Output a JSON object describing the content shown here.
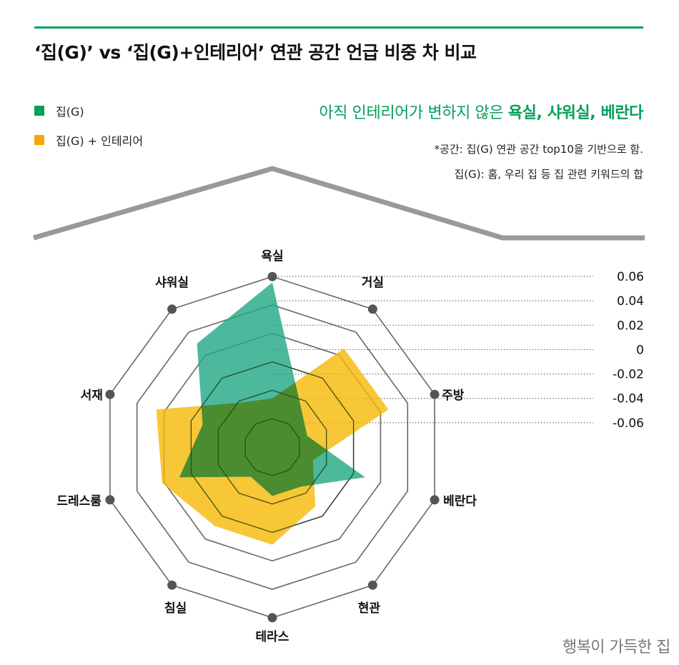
{
  "title": "‘집(G)’ vs ‘집(G)+인테리어’ 연관 공간 언급 비중 차 비교",
  "headline": {
    "prefix": "아직 인테리어가 변하지 않은 ",
    "emphasis": "욕실, 샤워실, 베란다"
  },
  "notes": [
    "*공간: 집(G) 연관 공간 top10을 기반으로 함.",
    "집(G): 홈, 우리 집 등 집 관련 키워드의 합"
  ],
  "brand": "행복이 가득한 집",
  "colors": {
    "accent": "#00a05a",
    "series_home": "#24a987",
    "series_interior": "#f5b700",
    "overlap": "#4a8c2f",
    "roof": "#999999",
    "grid": "#666666"
  },
  "chart_data": {
    "type": "radar",
    "title": "",
    "categories": [
      "욕실",
      "거실",
      "주방",
      "베란다",
      "현관",
      "테라스",
      "침실",
      "드레스룸",
      "서재",
      "샤워실"
    ],
    "rticks": [
      "0.06",
      "0.04",
      "0.02",
      "0",
      "-0.02",
      "-0.04",
      "-0.06"
    ],
    "rlim": [
      -0.08,
      0.06
    ],
    "series": [
      {
        "name": "집(G)",
        "color": "#24a987",
        "values": [
          0.055,
          -0.04,
          -0.05,
          0.0,
          -0.04,
          -0.04,
          -0.05,
          0.0,
          -0.02,
          0.025
        ]
      },
      {
        "name": "집(G) + 인테리어",
        "color": "#f5b700",
        "values": [
          -0.04,
          0.02,
          0.02,
          -0.045,
          -0.02,
          0.0,
          0.0,
          0.015,
          0.02,
          -0.035
        ]
      }
    ]
  }
}
